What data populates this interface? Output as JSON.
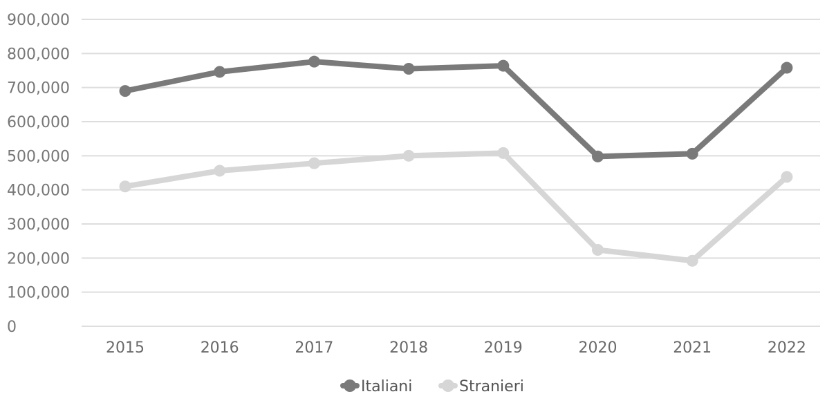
{
  "chart_data": {
    "type": "line",
    "categories": [
      "2015",
      "2016",
      "2017",
      "2018",
      "2019",
      "2020",
      "2021",
      "2022"
    ],
    "series": [
      {
        "name": "Italiani",
        "values": [
          690000,
          746000,
          776000,
          755000,
          764000,
          498000,
          506000,
          758000
        ],
        "color": "#7a7a7a"
      },
      {
        "name": "Stranieri",
        "values": [
          410000,
          456000,
          478000,
          500000,
          508000,
          224000,
          192000,
          438000
        ],
        "color": "#d6d6d6"
      }
    ],
    "ylim": [
      0,
      900000
    ],
    "yticks": [
      "0",
      "100,000",
      "200,000",
      "300,000",
      "400,000",
      "500,000",
      "600,000",
      "700,000",
      "800,000",
      "900,000"
    ],
    "grid": true,
    "legend": "bottom-center"
  }
}
